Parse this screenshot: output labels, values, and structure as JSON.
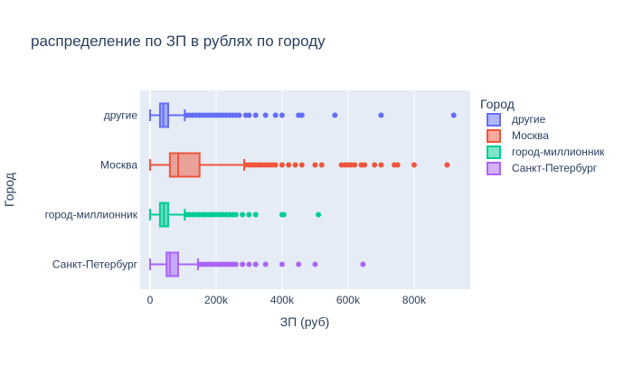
{
  "chart_data": {
    "type": "box",
    "orientation": "horizontal",
    "title": "распределение по ЗП в рублях по городу",
    "xlabel": "ЗП (руб)",
    "ylabel": "Город",
    "xlim": [
      -30000,
      970000
    ],
    "x_ticks": [
      0,
      200000,
      400000,
      600000,
      800000
    ],
    "x_tick_labels": [
      "0",
      "200k",
      "400k",
      "600k",
      "800k"
    ],
    "grid": true,
    "legend": {
      "title": "Город",
      "placement": "right"
    },
    "series": [
      {
        "name": "другие",
        "color": "#636efa",
        "min": 0,
        "q1": 30000,
        "median": 40000,
        "q3": 55000,
        "upper_fence": 105000,
        "outliers": [
          110000,
          120000,
          130000,
          140000,
          150000,
          160000,
          170000,
          180000,
          190000,
          200000,
          210000,
          220000,
          230000,
          240000,
          250000,
          260000,
          270000,
          290000,
          300000,
          320000,
          350000,
          380000,
          400000,
          450000,
          460000,
          560000,
          700000,
          920000
        ]
      },
      {
        "name": "Москва",
        "color": "#ef553b",
        "min": 0,
        "q1": 60000,
        "median": 85000,
        "q3": 150000,
        "upper_fence": 285000,
        "outliers": [
          290000,
          300000,
          310000,
          320000,
          330000,
          340000,
          350000,
          360000,
          370000,
          380000,
          400000,
          420000,
          440000,
          460000,
          500000,
          520000,
          580000,
          590000,
          600000,
          610000,
          620000,
          640000,
          650000,
          680000,
          700000,
          740000,
          750000,
          800000,
          900000
        ]
      },
      {
        "name": "город-миллионник",
        "color": "#00cc96",
        "min": 0,
        "q1": 30000,
        "median": 42000,
        "q3": 55000,
        "upper_fence": 105000,
        "outliers": [
          110000,
          120000,
          130000,
          140000,
          150000,
          160000,
          170000,
          180000,
          190000,
          200000,
          210000,
          220000,
          230000,
          240000,
          250000,
          260000,
          280000,
          300000,
          320000,
          400000,
          405000,
          510000
        ]
      },
      {
        "name": "Санкт-Петербург",
        "color": "#ab63fa",
        "min": 0,
        "q1": 50000,
        "median": 60000,
        "q3": 85000,
        "upper_fence": 145000,
        "outliers": [
          150000,
          160000,
          170000,
          180000,
          190000,
          200000,
          210000,
          220000,
          230000,
          240000,
          250000,
          260000,
          280000,
          300000,
          320000,
          350000,
          400000,
          450000,
          500000,
          645000
        ]
      }
    ]
  }
}
